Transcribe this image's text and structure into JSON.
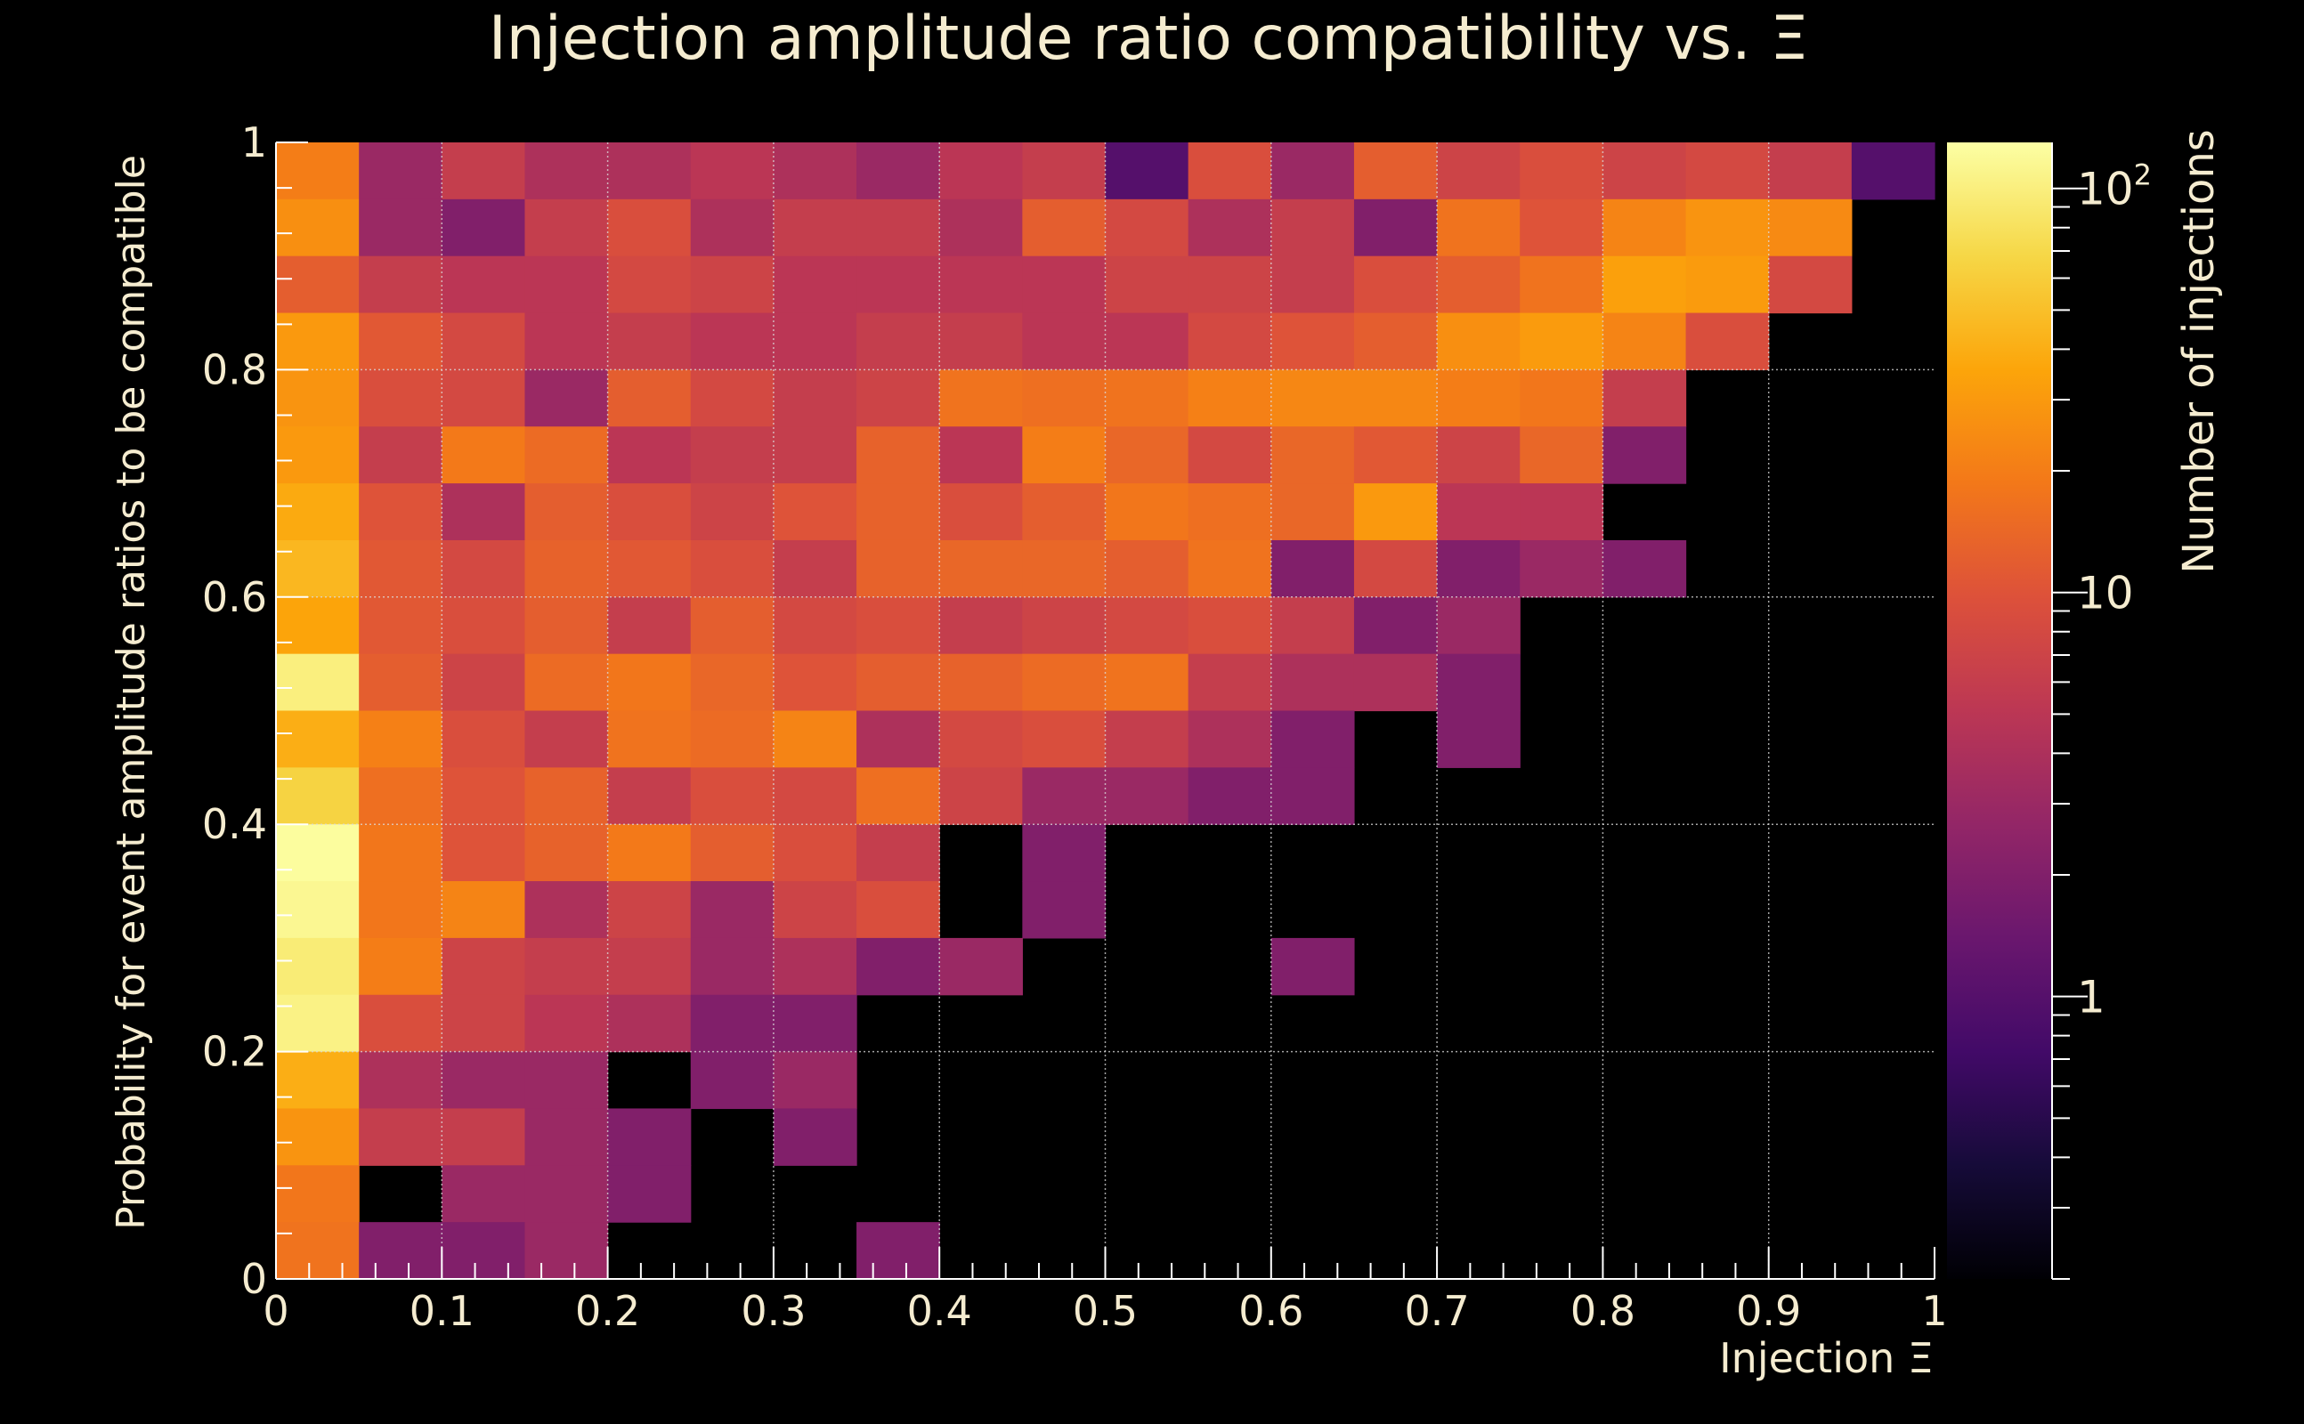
{
  "chart_data": {
    "type": "heatmap",
    "title": "Injection amplitude ratio compatibility vs.  Ξ",
    "xlabel": "Injection Ξ",
    "ylabel": "Probability for event amplitude ratios to be compatible",
    "zlabel": "Number of injections",
    "xlim": [
      0,
      1
    ],
    "ylim": [
      0,
      1
    ],
    "zlim": [
      0.2,
      130
    ],
    "zscale": "log",
    "grid": true,
    "colormap": "inferno",
    "x_ticks": [
      "0",
      "0.1",
      "0.2",
      "0.3",
      "0.4",
      "0.5",
      "0.6",
      "0.7",
      "0.8",
      "0.9",
      "1"
    ],
    "y_ticks": [
      "0",
      "0.2",
      "0.4",
      "0.6",
      "0.8",
      "1"
    ],
    "z_ticks": [
      {
        "value": 1,
        "label": "1"
      },
      {
        "value": 10,
        "label": "10"
      },
      {
        "value": 100,
        "label": "10^2",
        "base": "10",
        "exp": "2"
      }
    ],
    "x_bins": 20,
    "y_bins": 20,
    "x_bin_width": 0.05,
    "y_bin_width": 0.05,
    "counts_rows_top_to_bottom": [
      [
        20,
        3,
        6,
        4,
        4,
        5,
        4,
        3,
        5,
        6,
        1,
        9,
        3,
        12,
        7,
        9,
        7,
        8,
        6,
        1
      ],
      [
        26,
        3,
        2,
        6,
        9,
        4,
        6,
        6,
        4,
        12,
        8,
        4,
        6,
        2,
        17,
        10,
        22,
        28,
        24,
        0
      ],
      [
        12,
        6,
        5,
        5,
        8,
        7,
        5,
        5,
        5,
        5,
        7,
        7,
        6,
        9,
        12,
        17,
        33,
        31,
        8,
        0
      ],
      [
        30,
        11,
        8,
        5,
        6,
        5,
        5,
        6,
        6,
        5,
        5,
        8,
        10,
        12,
        26,
        31,
        22,
        9,
        0,
        0
      ],
      [
        28,
        9,
        8,
        3,
        12,
        8,
        6,
        7,
        17,
        16,
        17,
        21,
        23,
        23,
        20,
        18,
        6,
        0,
        0,
        0
      ],
      [
        30,
        6,
        19,
        15,
        5,
        6,
        6,
        13,
        5,
        20,
        14,
        8,
        14,
        11,
        7,
        14,
        2,
        0,
        0,
        0
      ],
      [
        38,
        10,
        4,
        12,
        9,
        7,
        10,
        13,
        9,
        12,
        18,
        16,
        14,
        30,
        5,
        5,
        0,
        0,
        0,
        0
      ],
      [
        45,
        11,
        8,
        13,
        11,
        9,
        6,
        13,
        14,
        14,
        12,
        17,
        2,
        8,
        2,
        3,
        2,
        0,
        0,
        0
      ],
      [
        35,
        11,
        9,
        12,
        6,
        12,
        8,
        9,
        6,
        7,
        8,
        9,
        6,
        2,
        3,
        0,
        0,
        0,
        0,
        0
      ],
      [
        100,
        12,
        7,
        15,
        18,
        14,
        10,
        12,
        13,
        15,
        17,
        6,
        4,
        4,
        2,
        0,
        0,
        0,
        0,
        0
      ],
      [
        40,
        21,
        9,
        6,
        17,
        15,
        22,
        4,
        8,
        9,
        6,
        4,
        2,
        0,
        2,
        0,
        0,
        0,
        0,
        0
      ],
      [
        65,
        16,
        10,
        13,
        6,
        9,
        8,
        16,
        7,
        3,
        3,
        2,
        2,
        0,
        0,
        0,
        0,
        0,
        0,
        0
      ],
      [
        125,
        18,
        10,
        13,
        19,
        12,
        9,
        6,
        0,
        2,
        0,
        0,
        0,
        0,
        0,
        0,
        0,
        0,
        0,
        0
      ],
      [
        115,
        18,
        22,
        4,
        7,
        3,
        7,
        9,
        0,
        2,
        0,
        0,
        0,
        0,
        0,
        0,
        0,
        0,
        0,
        0
      ],
      [
        95,
        20,
        7,
        6,
        6,
        3,
        4,
        2,
        3,
        0,
        0,
        0,
        2,
        0,
        0,
        0,
        0,
        0,
        0,
        0
      ],
      [
        105,
        9,
        7,
        5,
        4,
        2,
        2,
        0,
        0,
        0,
        0,
        0,
        0,
        0,
        0,
        0,
        0,
        0,
        0,
        0
      ],
      [
        40,
        4,
        3,
        3,
        0,
        2,
        3,
        0,
        0,
        0,
        0,
        0,
        0,
        0,
        0,
        0,
        0,
        0,
        0,
        0
      ],
      [
        28,
        6,
        6,
        3,
        2,
        0,
        2,
        0,
        0,
        0,
        0,
        0,
        0,
        0,
        0,
        0,
        0,
        0,
        0,
        0
      ],
      [
        18,
        0,
        3,
        3,
        2,
        0,
        0,
        0,
        0,
        0,
        0,
        0,
        0,
        0,
        0,
        0,
        0,
        0,
        0,
        0
      ],
      [
        17,
        2,
        2,
        3,
        0,
        0,
        0,
        2,
        0,
        0,
        0,
        0,
        0,
        0,
        0,
        0,
        0,
        0,
        0,
        0
      ]
    ]
  }
}
